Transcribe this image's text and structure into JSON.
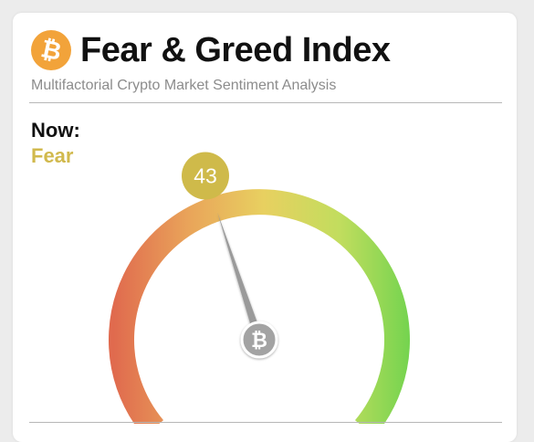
{
  "header": {
    "logo_icon": "bitcoin-icon",
    "title": "Fear & Greed Index",
    "subtitle": "Multifactorial Crypto Market Sentiment Analysis"
  },
  "now": {
    "label": "Now:",
    "classification": "Fear",
    "classification_color": "#d1b94d"
  },
  "gauge": {
    "value": 43,
    "min": 0,
    "max": 100,
    "badge_color": "#cfba4a",
    "needle_color": "#9a9a9a",
    "hub_icon": "bitcoin-icon",
    "gradient_colors": [
      "#e06a4e",
      "#e9a45a",
      "#e8d060",
      "#c2dd5e",
      "#6fd34e"
    ]
  }
}
